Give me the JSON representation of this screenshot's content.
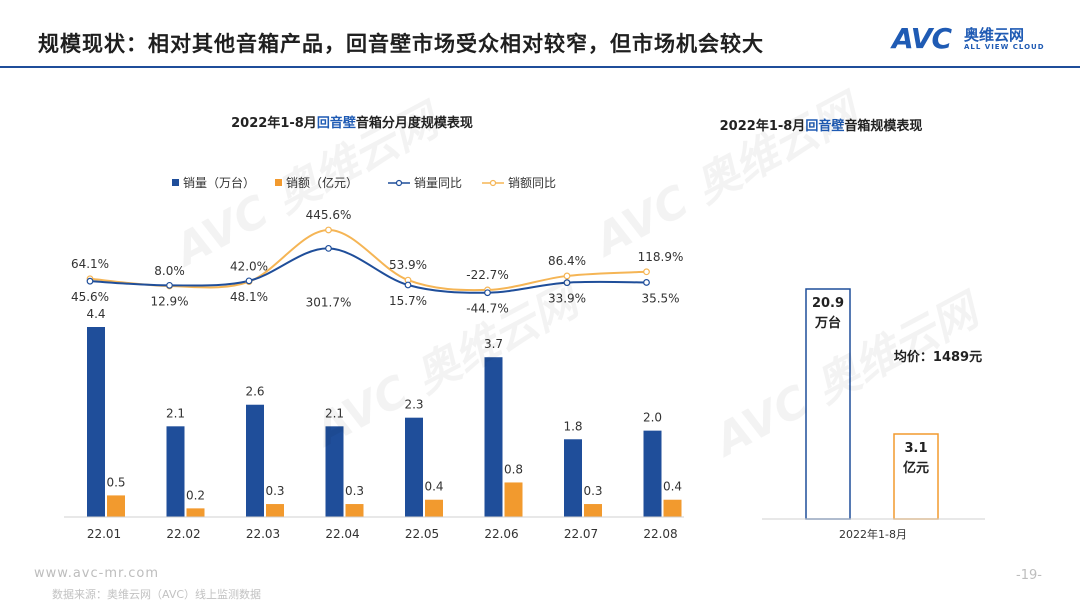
{
  "header": {
    "title": "规模现状：相对其他音箱产品，回音壁市场受众相对较窄，但市场机会较大",
    "logo_text": "AVC",
    "logo_cn": "奥维云网",
    "logo_en": "ALL VIEW CLOUD"
  },
  "chart_data": [
    {
      "type": "bar",
      "title_parts": [
        "2022年1-8月",
        "回音壁",
        "音箱分月度规模表现"
      ],
      "categories": [
        "22.01",
        "22.02",
        "22.03",
        "22.04",
        "22.05",
        "22.06",
        "22.07",
        "22.08"
      ],
      "legend_position": "top",
      "grid": false,
      "series": [
        {
          "name": "销量（万台）",
          "type": "bar",
          "color": "#1f4e9a",
          "values": [
            4.4,
            2.1,
            2.6,
            2.1,
            2.3,
            3.7,
            1.8,
            2.0
          ],
          "labels": [
            "4.4",
            "2.1",
            "2.6",
            "2.1",
            "2.3",
            "3.7",
            "1.8",
            "2.0"
          ]
        },
        {
          "name": "销额（亿元）",
          "type": "bar",
          "color": "#f29a2e",
          "values": [
            0.5,
            0.2,
            0.3,
            0.3,
            0.4,
            0.8,
            0.3,
            0.4
          ],
          "labels": [
            "0.5",
            "0.2",
            "0.3",
            "0.3",
            "0.4",
            "0.8",
            "0.3",
            "0.4"
          ]
        },
        {
          "name": "销量同比",
          "type": "line",
          "color": "#1f4e9a",
          "values": [
            45.6,
            12.9,
            48.1,
            301.7,
            15.7,
            -44.7,
            33.9,
            35.5
          ],
          "labels": [
            "45.6%",
            "12.9%",
            "48.1%",
            "301.7%",
            "15.7%",
            "-44.7%",
            "33.9%",
            "35.5%"
          ]
        },
        {
          "name": "销额同比",
          "type": "line",
          "color": "#f5b555",
          "values": [
            64.1,
            8.0,
            42.0,
            445.6,
            53.9,
            -22.7,
            86.4,
            118.9
          ],
          "labels": [
            "64.1%",
            "8.0%",
            "42.0%",
            "445.6%",
            "53.9%",
            "-22.7%",
            "86.4%",
            "118.9%"
          ]
        }
      ]
    },
    {
      "type": "bar",
      "title_parts": [
        "2022年1-8月",
        "回音壁",
        "音箱规模表现"
      ],
      "categories": [
        "2022年1-8月"
      ],
      "series": [
        {
          "name": "销量",
          "values": [
            20.9
          ],
          "label_lines": [
            "20.9",
            "万台"
          ],
          "color": "#1f4e9a"
        },
        {
          "name": "销额",
          "values": [
            3.1
          ],
          "label_lines": [
            "3.1",
            "亿元"
          ],
          "color": "#f29a2e"
        }
      ],
      "annotation": "均价：1489元"
    }
  ],
  "footer": {
    "url": "www.avc-mr.com",
    "source": "数据来源：奥维云网（AVC）线上监测数据",
    "page": "-19-"
  },
  "watermark": "AVC 奥维云网"
}
